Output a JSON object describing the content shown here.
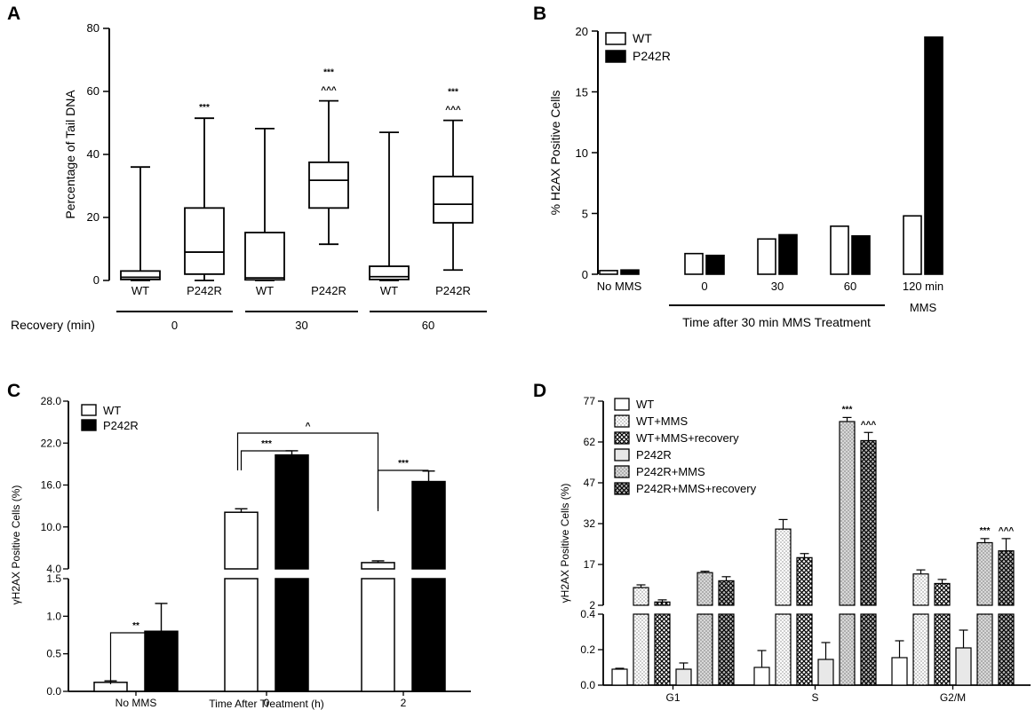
{
  "panels": [
    {
      "letter": "A"
    },
    {
      "letter": "B"
    },
    {
      "letter": "C"
    },
    {
      "letter": "D"
    }
  ],
  "colors": {
    "black": "#000000",
    "white": "#ffffff",
    "gray": "#e0e0e0",
    "dark_gray": "#b0b0b0"
  },
  "chart_data": [
    {
      "panel": "A",
      "type": "box",
      "ylabel": "Percentage of Tail DNA",
      "ylim": [
        0,
        80
      ],
      "yticks": [
        "0",
        "20",
        "40",
        "60",
        "80"
      ],
      "categories": [
        "WT",
        "P242R",
        "WT",
        "P242R",
        "WT",
        "P242R"
      ],
      "groups": [
        {
          "label": "0",
          "members": [
            0,
            1
          ]
        },
        {
          "label": "30",
          "members": [
            2,
            3
          ]
        },
        {
          "label": "60",
          "members": [
            4,
            5
          ]
        }
      ],
      "group_title": "Recovery (min)",
      "boxes": [
        {
          "min": 0,
          "q1": 0.3,
          "median": 1.0,
          "q3": 3.0,
          "max": 36,
          "sig": []
        },
        {
          "min": 0,
          "q1": 2,
          "median": 9,
          "q3": 23,
          "max": 51.5,
          "sig": [
            "***"
          ]
        },
        {
          "min": 0,
          "q1": 0.2,
          "median": 0.8,
          "q3": 15.2,
          "max": 48.2,
          "sig": []
        },
        {
          "min": 11.5,
          "q1": 23,
          "median": 31.8,
          "q3": 37.5,
          "max": 57,
          "sig": [
            "***",
            "^^^"
          ]
        },
        {
          "min": 0,
          "q1": 0.3,
          "median": 1.2,
          "q3": 4.5,
          "max": 47,
          "sig": []
        },
        {
          "min": 3.3,
          "q1": 18.3,
          "median": 24.2,
          "q3": 33,
          "max": 50.8,
          "sig": [
            "***",
            "^^^"
          ]
        }
      ]
    },
    {
      "panel": "B",
      "type": "bar",
      "ylabel": "% H2AX Positive Cells",
      "ylim": [
        0,
        20
      ],
      "yticks": [
        "0",
        "5",
        "10",
        "15",
        "20"
      ],
      "categories": [
        "No MMS",
        "0",
        "30",
        "60",
        "120 min\nMMS"
      ],
      "xgroup_label": "Time after 30 min MMS Treatment",
      "series": [
        {
          "name": "WT",
          "values": [
            0.3,
            1.7,
            2.9,
            3.95,
            4.8
          ]
        },
        {
          "name": "P242R",
          "values": [
            0.35,
            1.55,
            3.25,
            3.15,
            19.5
          ]
        }
      ]
    },
    {
      "panel": "C",
      "type": "bar",
      "ylabel": "γH2AX Positive Cells (%)",
      "xlabel": "Time After Treatment (h)",
      "categories": [
        "No MMS",
        "0",
        "2"
      ],
      "yticks_upper": [
        "4.0",
        "10.0",
        "16.0",
        "22.0",
        "28.0"
      ],
      "yticks_lower": [
        "0.0",
        "0.5",
        "1.0",
        "1.5"
      ],
      "axis_break": [
        1.5,
        4.0
      ],
      "series": [
        {
          "name": "WT",
          "values": [
            0.12,
            12.1,
            4.9
          ],
          "errors": [
            0.02,
            0.5,
            0.25
          ]
        },
        {
          "name": "P242R",
          "values": [
            0.8,
            20.3,
            16.5
          ],
          "errors": [
            0.37,
            0.6,
            1.5
          ]
        }
      ],
      "annotations": [
        {
          "label": "**",
          "between": "No MMS: WT vs P242R"
        },
        {
          "label": "***",
          "between": "0: WT vs P242R"
        },
        {
          "label": "***",
          "between": "2: WT vs P242R"
        },
        {
          "label": "^",
          "between": "WT 0 vs WT 2"
        }
      ]
    },
    {
      "panel": "D",
      "type": "bar",
      "ylabel": "γH2AX Positive Cells (%)",
      "categories": [
        "G1",
        "S",
        "G2/M"
      ],
      "yticks_upper": [
        "2",
        "17",
        "32",
        "47",
        "62",
        "77"
      ],
      "yticks_lower": [
        "0.0",
        "0.2",
        "0.4"
      ],
      "axis_break": [
        0.4,
        2
      ],
      "series": [
        {
          "name": "WT",
          "values": [
            0.09,
            0.1,
            0.155
          ],
          "errors": [
            0.005,
            0.095,
            0.095
          ]
        },
        {
          "name": "WT+MMS",
          "values": [
            8.5,
            30,
            13.5
          ],
          "errors": [
            1,
            3.5,
            1.5
          ]
        },
        {
          "name": "WT+MMS+recovery",
          "values": [
            3.2,
            19.5,
            10
          ],
          "errors": [
            0.8,
            1.5,
            1.5
          ]
        },
        {
          "name": "P242R",
          "values": [
            0.09,
            0.145,
            0.21
          ],
          "errors": [
            0.035,
            0.095,
            0.1
          ]
        },
        {
          "name": "P242R+MMS",
          "values": [
            14,
            69.5,
            25
          ],
          "errors": [
            0.5,
            1.5,
            1.5
          ]
        },
        {
          "name": "P242R+MMS+recovery",
          "values": [
            11,
            62.5,
            22
          ],
          "errors": [
            1.5,
            3,
            4.5
          ]
        }
      ],
      "annotations": [
        {
          "label": "***",
          "over": "S: P242R+MMS"
        },
        {
          "label": "^^^",
          "over": "S: P242R+MMS+recovery"
        },
        {
          "label": "***",
          "over": "G2/M: P242R+MMS"
        },
        {
          "label": "^^^",
          "over": "G2/M: P242R+MMS+recovery"
        }
      ]
    }
  ]
}
